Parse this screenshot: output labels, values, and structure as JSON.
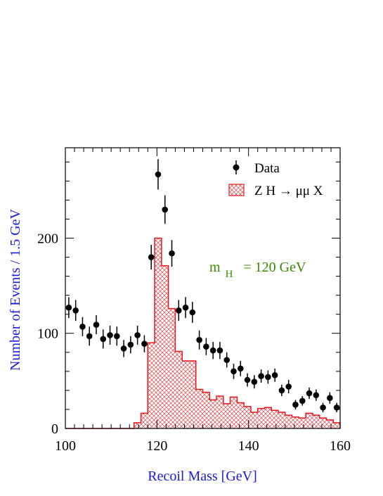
{
  "colors": {
    "axis": "#000000",
    "axis_title": "#1a1adb",
    "data_points": "#000000",
    "histogram": "#e8141b",
    "annotation": "#3a8a00"
  },
  "chart_data": {
    "type": "histogram+scatter",
    "xlabel": "Recoil Mass  [GeV]",
    "ylabel": "Number of Events / 1.5 GeV",
    "xlim": [
      100,
      160
    ],
    "ylim": [
      0,
      295
    ],
    "xticks": [
      100,
      120,
      140,
      160
    ],
    "yticks": [
      0,
      100,
      200
    ],
    "x_tick_labels": [
      "100",
      "120",
      "140",
      "160"
    ],
    "y_tick_labels": [
      "0",
      "100",
      "200"
    ],
    "grid": false,
    "legend_position": "top-right",
    "legend": [
      {
        "label": "Data",
        "style": "marker"
      },
      {
        "label": "Z H → μμ X",
        "style": "hatched-box"
      }
    ],
    "annotation": {
      "m": "m",
      "sub": "H",
      "rest": "=  120  GeV"
    },
    "series": [
      {
        "name": "Data",
        "kind": "points",
        "x": [
          100.75,
          102.25,
          103.75,
          105.25,
          106.75,
          108.25,
          109.75,
          111.25,
          112.75,
          114.25,
          115.75,
          117.25,
          118.75,
          120.25,
          121.75,
          123.25,
          124.75,
          126.25,
          127.75,
          129.25,
          130.75,
          132.25,
          133.75,
          135.25,
          136.75,
          138.25,
          139.75,
          141.25,
          142.75,
          144.25,
          145.75,
          147.25,
          148.75,
          150.25,
          151.75,
          153.25,
          154.75,
          156.25,
          157.75,
          159.25
        ],
        "y": [
          127,
          124,
          107,
          97,
          109,
          94,
          98,
          97,
          84,
          88,
          98,
          89,
          180,
          267,
          230,
          184,
          124,
          127,
          122,
          93,
          86,
          82,
          82,
          72,
          60,
          63,
          51,
          49,
          55,
          54,
          56,
          40,
          44,
          25,
          29,
          37,
          35,
          22,
          32,
          22
        ],
        "err": [
          11,
          11,
          10,
          10,
          10,
          10,
          10,
          10,
          9,
          9,
          10,
          9,
          13,
          16,
          15,
          14,
          11,
          11,
          11,
          10,
          9,
          9,
          9,
          8,
          8,
          8,
          7,
          7,
          7,
          7,
          7,
          6,
          7,
          5,
          5,
          6,
          6,
          5,
          6,
          5
        ]
      },
      {
        "name": "Z H → μμ X",
        "kind": "histogram",
        "bin_width": 1.5,
        "bin_edges_start": 100,
        "values": [
          0,
          0,
          0,
          0,
          0,
          0,
          0,
          0,
          0,
          0,
          6,
          16,
          90,
          200,
          171,
          126,
          81,
          71,
          71,
          41,
          38,
          30,
          34,
          26,
          33,
          27,
          23,
          17,
          21,
          22,
          19,
          17,
          14,
          12,
          11,
          16,
          14,
          11,
          9,
          6
        ]
      }
    ]
  }
}
